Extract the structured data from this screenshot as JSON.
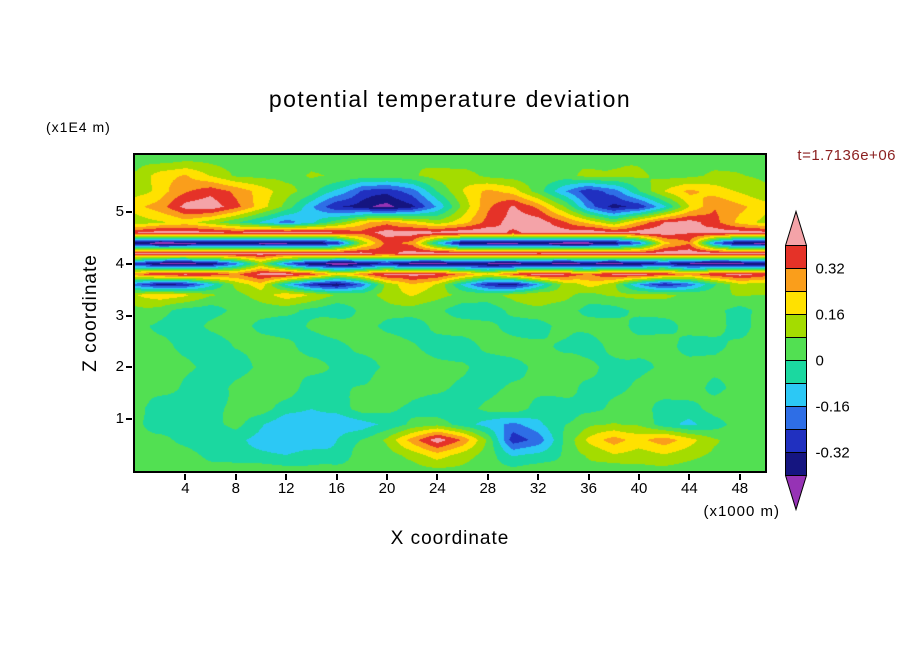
{
  "title": "potential temperature deviation",
  "timestamp": "t=1.7136e+06",
  "axes": {
    "x_label": "X coordinate",
    "x_units": "(x1000 m)",
    "x_ticks": [
      4,
      8,
      12,
      16,
      20,
      24,
      28,
      32,
      36,
      40,
      44,
      48
    ],
    "y_label": "Z coordinate",
    "y_units": "(x1E4 m)",
    "y_ticks": [
      1,
      2,
      3,
      4,
      5
    ]
  },
  "colorbar": {
    "labels": [
      "0.32",
      "0.16",
      "0",
      "-0.16",
      "-0.32"
    ],
    "label_values": [
      0.32,
      0.16,
      0,
      -0.16,
      -0.32
    ]
  },
  "colors": {
    "timestamp": "#8b1f1f",
    "frame": "#000000"
  },
  "chart_data": {
    "type": "heatmap",
    "title": "potential temperature deviation",
    "xlabel": "X coordinate (x1000 m)",
    "ylabel": "Z coordinate (x1E4 m)",
    "xlim": [
      0,
      50
    ],
    "ylim": [
      0,
      6.1
    ],
    "legend_position": "right-colorbar",
    "grid": false,
    "levels": [
      -0.4,
      -0.32,
      -0.24,
      -0.16,
      -0.08,
      0,
      0.08,
      0.16,
      0.24,
      0.32,
      0.4
    ],
    "colors": [
      "#9633b5",
      "#151580",
      "#2030c0",
      "#2e6ee6",
      "#2cc8f5",
      "#1bd8a0",
      "#52e052",
      "#a4dc00",
      "#ffe100",
      "#fa9e1b",
      "#e53228",
      "#f4a3a8"
    ],
    "x": [
      0,
      2,
      4,
      6,
      8,
      10,
      12,
      14,
      16,
      18,
      20,
      22,
      24,
      26,
      28,
      30,
      32,
      34,
      36,
      38,
      40,
      42,
      44,
      46,
      48,
      50
    ],
    "z": [
      0,
      0.3,
      0.6,
      0.9,
      1.2,
      1.6,
      2.0,
      2.4,
      2.8,
      3.1,
      3.4,
      3.6,
      3.8,
      4.0,
      4.2,
      4.4,
      4.6,
      4.8,
      5.1,
      5.4,
      5.7,
      6.0
    ],
    "values": [
      [
        0.04,
        0.05,
        0.04,
        0.03,
        0.04,
        0.05,
        0.04,
        0.03,
        0.04,
        0.05,
        0.04,
        0.03,
        0.04,
        0.05,
        0.04,
        0.03,
        0.04,
        0.05,
        0.04,
        0.03,
        0.04,
        0.05,
        0.04,
        0.03,
        0.04,
        0.05
      ],
      [
        0.04,
        0.04,
        0.03,
        -0.04,
        -0.05,
        -0.06,
        -0.08,
        -0.06,
        -0.04,
        0.02,
        0.05,
        0.1,
        0.2,
        0.12,
        0.04,
        -0.1,
        -0.06,
        0.02,
        0.08,
        0.15,
        0.12,
        0.15,
        0.1,
        0.05,
        0.04,
        0.04
      ],
      [
        0.04,
        0.03,
        -0.04,
        -0.08,
        -0.06,
        -0.12,
        -0.16,
        -0.12,
        -0.08,
        0.0,
        0.1,
        0.28,
        0.45,
        0.3,
        0.05,
        -0.3,
        -0.2,
        0.0,
        0.18,
        0.28,
        0.22,
        0.28,
        0.18,
        0.08,
        0.05,
        0.04
      ],
      [
        0.03,
        -0.04,
        -0.06,
        -0.04,
        0.02,
        -0.08,
        -0.14,
        -0.12,
        -0.15,
        -0.12,
        -0.06,
        0.02,
        0.04,
        -0.05,
        -0.12,
        -0.18,
        -0.1,
        0.0,
        0.05,
        0.1,
        0.06,
        -0.06,
        -0.1,
        -0.04,
        0.04,
        0.03
      ],
      [
        0.03,
        -0.05,
        -0.08,
        -0.04,
        0.03,
        0.05,
        -0.04,
        -0.08,
        -0.05,
        0.03,
        0.04,
        -0.05,
        -0.07,
        -0.04,
        0.03,
        0.05,
        -0.04,
        -0.06,
        -0.03,
        0.04,
        0.05,
        -0.05,
        -0.04,
        0.03,
        0.04,
        0.03
      ],
      [
        0.05,
        0.04,
        -0.03,
        -0.05,
        0.03,
        0.04,
        0.05,
        -0.04,
        -0.05,
        0.02,
        0.04,
        0.05,
        0.03,
        -0.04,
        -0.05,
        0.03,
        0.05,
        0.04,
        -0.03,
        -0.04,
        0.03,
        0.05,
        0.04,
        -0.03,
        0.04,
        0.05
      ],
      [
        0.04,
        0.05,
        0.03,
        -0.04,
        -0.05,
        0.03,
        0.05,
        0.04,
        -0.03,
        -0.05,
        0.02,
        0.05,
        0.04,
        0.03,
        -0.05,
        -0.04,
        0.03,
        0.05,
        0.04,
        -0.04,
        -0.05,
        0.03,
        0.05,
        0.04,
        0.03,
        0.04
      ],
      [
        0.05,
        0.03,
        -0.04,
        -0.05,
        0.02,
        0.05,
        0.03,
        -0.05,
        -0.04,
        0.03,
        0.05,
        0.02,
        -0.04,
        -0.05,
        0.03,
        0.05,
        0.04,
        -0.03,
        -0.05,
        0.03,
        0.05,
        0.04,
        -0.04,
        -0.03,
        0.04,
        0.05
      ],
      [
        0.04,
        -0.04,
        -0.05,
        0.03,
        0.05,
        -0.03,
        -0.05,
        0.02,
        0.05,
        0.04,
        -0.04,
        -0.05,
        0.03,
        0.05,
        0.04,
        -0.03,
        -0.05,
        0.02,
        0.04,
        0.05,
        -0.04,
        -0.03,
        0.04,
        0.05,
        -0.03,
        0.04
      ],
      [
        0.05,
        0.04,
        -0.03,
        -0.05,
        0.03,
        0.05,
        0.04,
        -0.04,
        -0.06,
        0.02,
        0.05,
        0.04,
        0.03,
        -0.04,
        -0.05,
        0.03,
        0.05,
        0.04,
        -0.03,
        -0.05,
        0.02,
        0.05,
        0.04,
        0.03,
        -0.04,
        0.04
      ],
      [
        0.15,
        0.22,
        0.18,
        0.1,
        0.06,
        0.12,
        0.2,
        0.15,
        0.08,
        0.05,
        0.1,
        0.18,
        0.12,
        0.06,
        0.05,
        0.1,
        0.15,
        0.1,
        0.06,
        0.08,
        0.12,
        0.1,
        0.06,
        0.05,
        0.1,
        0.08
      ],
      [
        -0.2,
        -0.35,
        -0.3,
        -0.1,
        0.1,
        0.2,
        -0.1,
        -0.3,
        -0.38,
        -0.2,
        0.1,
        0.25,
        0.15,
        -0.1,
        -0.3,
        -0.35,
        -0.15,
        0.1,
        0.2,
        0.1,
        -0.15,
        -0.32,
        -0.2,
        0.0,
        0.15,
        0.1
      ],
      [
        0.3,
        0.4,
        0.44,
        0.38,
        0.3,
        0.42,
        0.44,
        0.36,
        0.2,
        0.3,
        0.42,
        0.44,
        0.4,
        0.3,
        0.2,
        0.35,
        0.44,
        0.42,
        0.3,
        0.42,
        0.44,
        0.38,
        0.3,
        0.4,
        0.44,
        0.36
      ],
      [
        -0.3,
        -0.42,
        -0.45,
        -0.4,
        -0.2,
        0.1,
        -0.2,
        -0.4,
        -0.45,
        -0.42,
        -0.3,
        -0.44,
        -0.45,
        -0.38,
        -0.42,
        -0.45,
        -0.4,
        -0.44,
        -0.42,
        -0.45,
        -0.38,
        -0.3,
        -0.42,
        -0.45,
        -0.44,
        -0.4
      ],
      [
        0.44,
        0.45,
        0.42,
        0.45,
        0.45,
        0.44,
        0.4,
        0.45,
        0.45,
        0.42,
        0.38,
        0.44,
        0.45,
        0.45,
        0.42,
        0.45,
        0.4,
        0.44,
        0.45,
        0.45,
        0.42,
        0.45,
        0.45,
        0.44,
        0.42,
        0.45
      ],
      [
        -0.4,
        -0.45,
        -0.45,
        -0.42,
        -0.38,
        -0.45,
        -0.45,
        -0.4,
        -0.3,
        0.1,
        0.35,
        0.3,
        -0.1,
        -0.4,
        -0.45,
        -0.45,
        -0.42,
        -0.45,
        -0.45,
        -0.38,
        -0.2,
        0.2,
        0.3,
        -0.2,
        -0.42,
        -0.45
      ],
      [
        0.4,
        0.45,
        0.45,
        0.42,
        0.38,
        0.44,
        0.45,
        0.45,
        0.4,
        0.35,
        0.44,
        0.45,
        0.42,
        0.45,
        0.45,
        0.38,
        0.44,
        0.45,
        0.45,
        0.42,
        0.45,
        0.44,
        0.4,
        0.45,
        0.45,
        0.42
      ],
      [
        0.1,
        0.15,
        0.2,
        0.1,
        0.0,
        -0.1,
        -0.2,
        -0.1,
        0.05,
        0.2,
        0.3,
        0.2,
        0.1,
        0.2,
        0.35,
        0.44,
        0.44,
        0.35,
        0.2,
        0.1,
        0.25,
        0.4,
        0.44,
        0.35,
        0.2,
        0.12
      ],
      [
        0.2,
        0.3,
        0.42,
        0.45,
        0.35,
        0.2,
        0.05,
        -0.15,
        -0.3,
        -0.38,
        -0.42,
        -0.35,
        -0.15,
        0.1,
        0.3,
        0.4,
        0.3,
        0.1,
        -0.2,
        -0.35,
        -0.3,
        -0.1,
        0.15,
        0.3,
        0.25,
        0.2
      ],
      [
        0.12,
        0.2,
        0.3,
        0.38,
        0.3,
        0.2,
        0.1,
        0.05,
        -0.1,
        -0.25,
        -0.3,
        -0.2,
        0.0,
        0.15,
        0.25,
        0.2,
        0.05,
        -0.15,
        -0.3,
        -0.2,
        0.0,
        0.15,
        0.25,
        0.2,
        0.15,
        0.1
      ],
      [
        0.1,
        0.2,
        0.25,
        0.15,
        0.06,
        0.05,
        0.06,
        0.1,
        0.06,
        0.05,
        0.05,
        0.06,
        0.1,
        0.12,
        0.06,
        0.05,
        0.04,
        0.05,
        0.1,
        0.12,
        0.08,
        0.05,
        0.06,
        0.1,
        0.08,
        0.06
      ],
      [
        0.05,
        0.05,
        0.06,
        0.05,
        0.04,
        0.05,
        0.06,
        0.05,
        0.04,
        0.05,
        0.05,
        0.06,
        0.05,
        0.04,
        0.05,
        0.06,
        0.05,
        0.05,
        0.04,
        0.05,
        0.06,
        0.05,
        0.05,
        0.04,
        0.05,
        0.05
      ]
    ]
  }
}
